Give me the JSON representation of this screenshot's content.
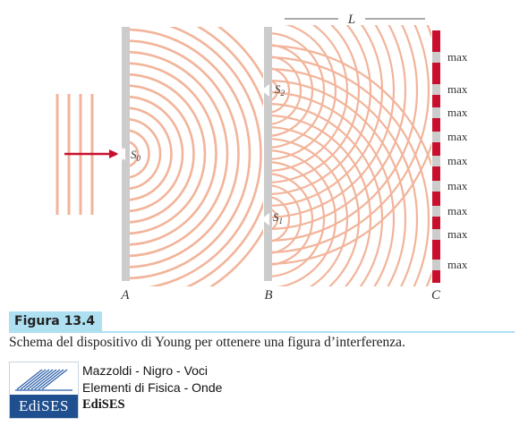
{
  "diagram": {
    "barrier_a_label": "A",
    "barrier_b_label": "B",
    "screen_c_label": "C",
    "distance_label": "L",
    "slit_s0_main": "S",
    "slit_s0_sub": "0",
    "slit_s1_main": "S",
    "slit_s1_sub": "1",
    "slit_s2_main": "S",
    "slit_s2_sub": "2",
    "max_labels": [
      "max",
      "max",
      "max",
      "max",
      "max",
      "max",
      "max",
      "max",
      "max"
    ],
    "colors": {
      "wave": "#f2b49a",
      "barrier": "#cccccc",
      "screen_fringe": "#c8102e",
      "arrow": "#c8102e"
    }
  },
  "figure": {
    "label": "Figura 13.4",
    "caption": "Schema del dispositivo di Young per ottenere una figura d’interferenza."
  },
  "publisher": {
    "logo_text": "EdiSES",
    "authors": "Mazzoldi - Nigro - Voci",
    "book": "Elementi di Fisica - Onde",
    "name": "EdiSES"
  }
}
